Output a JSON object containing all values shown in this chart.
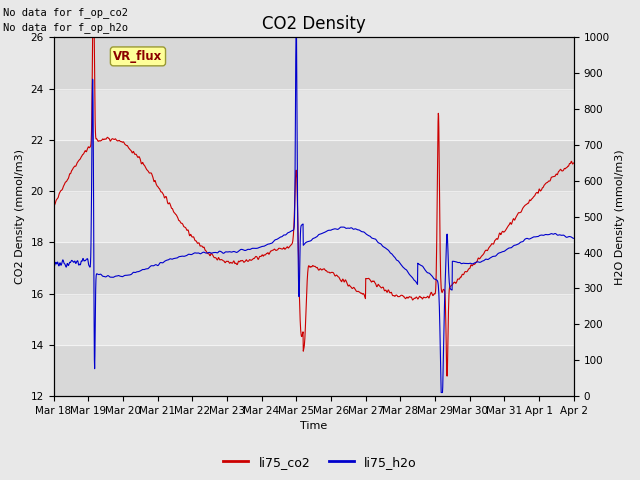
{
  "title": "CO2 Density",
  "xlabel": "Time",
  "ylabel_left": "CO2 Density (mmol/m3)",
  "ylabel_right": "H2O Density (mmol/m3)",
  "text_no_data_1": "No data for f_op_co2",
  "text_no_data_2": "No data for f_op_h2o",
  "vr_flux_label": "VR_flux",
  "legend_co2": "li75_co2",
  "legend_h2o": "li75_h2o",
  "co2_color": "#cc0000",
  "h2o_color": "#0000cc",
  "fig_bg_color": "#e8e8e8",
  "band_colors": [
    "#d8d8d8",
    "#e4e4e4"
  ],
  "ylim_left": [
    12,
    26
  ],
  "ylim_right": [
    0,
    1000
  ],
  "yticks_left": [
    12,
    14,
    16,
    18,
    20,
    22,
    24,
    26
  ],
  "yticks_right": [
    0,
    100,
    200,
    300,
    400,
    500,
    600,
    700,
    800,
    900,
    1000
  ],
  "n_points": 2000,
  "line_width": 0.8,
  "title_fontsize": 12,
  "label_fontsize": 8,
  "tick_fontsize": 7.5,
  "legend_fontsize": 9
}
